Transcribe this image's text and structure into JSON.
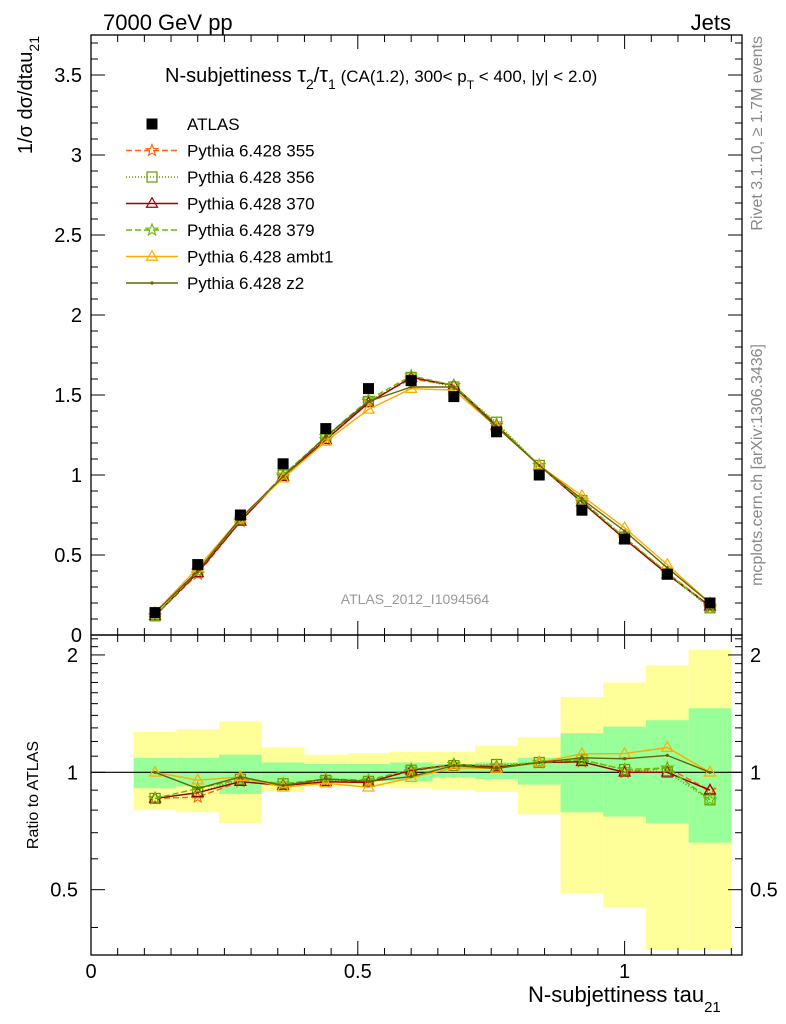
{
  "header": {
    "left": "7000 GeV pp",
    "right": "Jets"
  },
  "side_labels": {
    "rivet": "Rivet 3.1.10, ≥ 1.7M events",
    "mcplots": "mcplots.cern.ch [arXiv:1306.3436]"
  },
  "chart_data": {
    "type": "line",
    "title": {
      "prefix": "N-subjettiness ",
      "tau": "τ",
      "sub2": "2",
      "slash": "/",
      "sub1": "1",
      "mid": " (CA(1.2), 300< p",
      "subT": "T",
      "suffix": " < 400, |y| < 2.0)"
    },
    "ylabel": "1/σ dσ/dtau",
    "ylabel_sub": "21",
    "xlabel": "N-subjettiness tau",
    "xlabel_sub": "21",
    "watermark": "ATLAS_2012_I1094564",
    "ratio_ylabel": "Ratio to ATLAS",
    "xlim": [
      0,
      1.22
    ],
    "ylim": [
      0,
      3.75
    ],
    "ratio_ylim": [
      0.34,
      2.25
    ],
    "x_ticks": [
      {
        "value": 0,
        "label": "0"
      },
      {
        "value": 0.5,
        "label": "0.5"
      },
      {
        "value": 1,
        "label": "1"
      }
    ],
    "y_ticks": [
      {
        "value": 0,
        "label": "0"
      },
      {
        "value": 0.5,
        "label": "0.5"
      },
      {
        "value": 1,
        "label": "1"
      },
      {
        "value": 1.5,
        "label": "1.5"
      },
      {
        "value": 2,
        "label": "2"
      },
      {
        "value": 2.5,
        "label": "2.5"
      },
      {
        "value": 3,
        "label": "3"
      },
      {
        "value": 3.5,
        "label": "3.5"
      }
    ],
    "ratio_ticks": [
      {
        "value": 0.5,
        "label": "0.5"
      },
      {
        "value": 1,
        "label": "1"
      },
      {
        "value": 2,
        "label": "2"
      }
    ],
    "x": [
      0.12,
      0.2,
      0.28,
      0.36,
      0.44,
      0.52,
      0.6,
      0.68,
      0.76,
      0.84,
      0.92,
      1.0,
      1.08,
      1.16
    ],
    "bin_edges": [
      0.08,
      0.16,
      0.24,
      0.32,
      0.4,
      0.48,
      0.56,
      0.64,
      0.72,
      0.8,
      0.88,
      0.96,
      1.04,
      1.12,
      1.2
    ],
    "data": {
      "name": "ATLAS",
      "values": [
        0.14,
        0.44,
        0.75,
        1.07,
        1.29,
        1.54,
        1.59,
        1.49,
        1.27,
        1.0,
        0.78,
        0.6,
        0.38,
        0.2
      ],
      "color": "#000000"
    },
    "bands": {
      "stat_color": "#99ff99",
      "total_color": "#ffff99",
      "green_lo": [
        0.91,
        0.92,
        0.88,
        0.93,
        0.95,
        0.95,
        0.95,
        0.97,
        0.96,
        0.93,
        0.79,
        0.77,
        0.74,
        0.66
      ],
      "green_hi": [
        1.09,
        1.09,
        1.11,
        1.06,
        1.05,
        1.05,
        1.06,
        1.05,
        1.06,
        1.09,
        1.26,
        1.31,
        1.36,
        1.46
      ],
      "yellow_lo": [
        0.8,
        0.79,
        0.74,
        0.89,
        0.92,
        0.92,
        0.91,
        0.9,
        0.89,
        0.78,
        0.49,
        0.45,
        0.35,
        0.35
      ],
      "yellow_hi": [
        1.27,
        1.29,
        1.35,
        1.16,
        1.11,
        1.12,
        1.13,
        1.13,
        1.17,
        1.23,
        1.56,
        1.7,
        1.88,
        2.06
      ]
    },
    "series": [
      {
        "name": "Pythia 6.428 355",
        "color": "#ff6600",
        "dash": "6,3",
        "marker": "star",
        "values": [
          0.12,
          0.38,
          0.71,
          0.99,
          1.22,
          1.46,
          1.6,
          1.56,
          1.31,
          1.06,
          0.83,
          0.6,
          0.39,
          0.18
        ]
      },
      {
        "name": "Pythia 6.428 356",
        "color": "#669900",
        "dash": "1,2",
        "marker": "square",
        "values": [
          0.12,
          0.39,
          0.72,
          1.0,
          1.23,
          1.46,
          1.61,
          1.55,
          1.33,
          1.06,
          0.84,
          0.61,
          0.38,
          0.17
        ]
      },
      {
        "name": "Pythia 6.428 370",
        "color": "#990000",
        "dash": "",
        "marker": "triangle",
        "values": [
          0.12,
          0.39,
          0.71,
          0.99,
          1.22,
          1.45,
          1.61,
          1.56,
          1.31,
          1.06,
          0.83,
          0.6,
          0.38,
          0.18
        ]
      },
      {
        "name": "Pythia 6.428 379",
        "color": "#66bb00",
        "dash": "6,3",
        "marker": "star",
        "values": [
          0.12,
          0.4,
          0.72,
          1.0,
          1.24,
          1.47,
          1.62,
          1.56,
          1.32,
          1.06,
          0.84,
          0.61,
          0.39,
          0.17
        ]
      },
      {
        "name": "Pythia 6.428 ambt1",
        "color": "#ffaa00",
        "dash": "",
        "marker": "triangle",
        "values": [
          0.14,
          0.42,
          0.73,
          0.98,
          1.21,
          1.41,
          1.54,
          1.53,
          1.3,
          1.06,
          0.87,
          0.67,
          0.44,
          0.2
        ]
      },
      {
        "name": "Pythia 6.428 z2",
        "color": "#666600",
        "dash": "",
        "marker": "dot",
        "values": [
          0.14,
          0.4,
          0.73,
          0.99,
          1.24,
          1.46,
          1.55,
          1.55,
          1.3,
          1.06,
          0.85,
          0.65,
          0.42,
          0.2
        ]
      }
    ]
  }
}
